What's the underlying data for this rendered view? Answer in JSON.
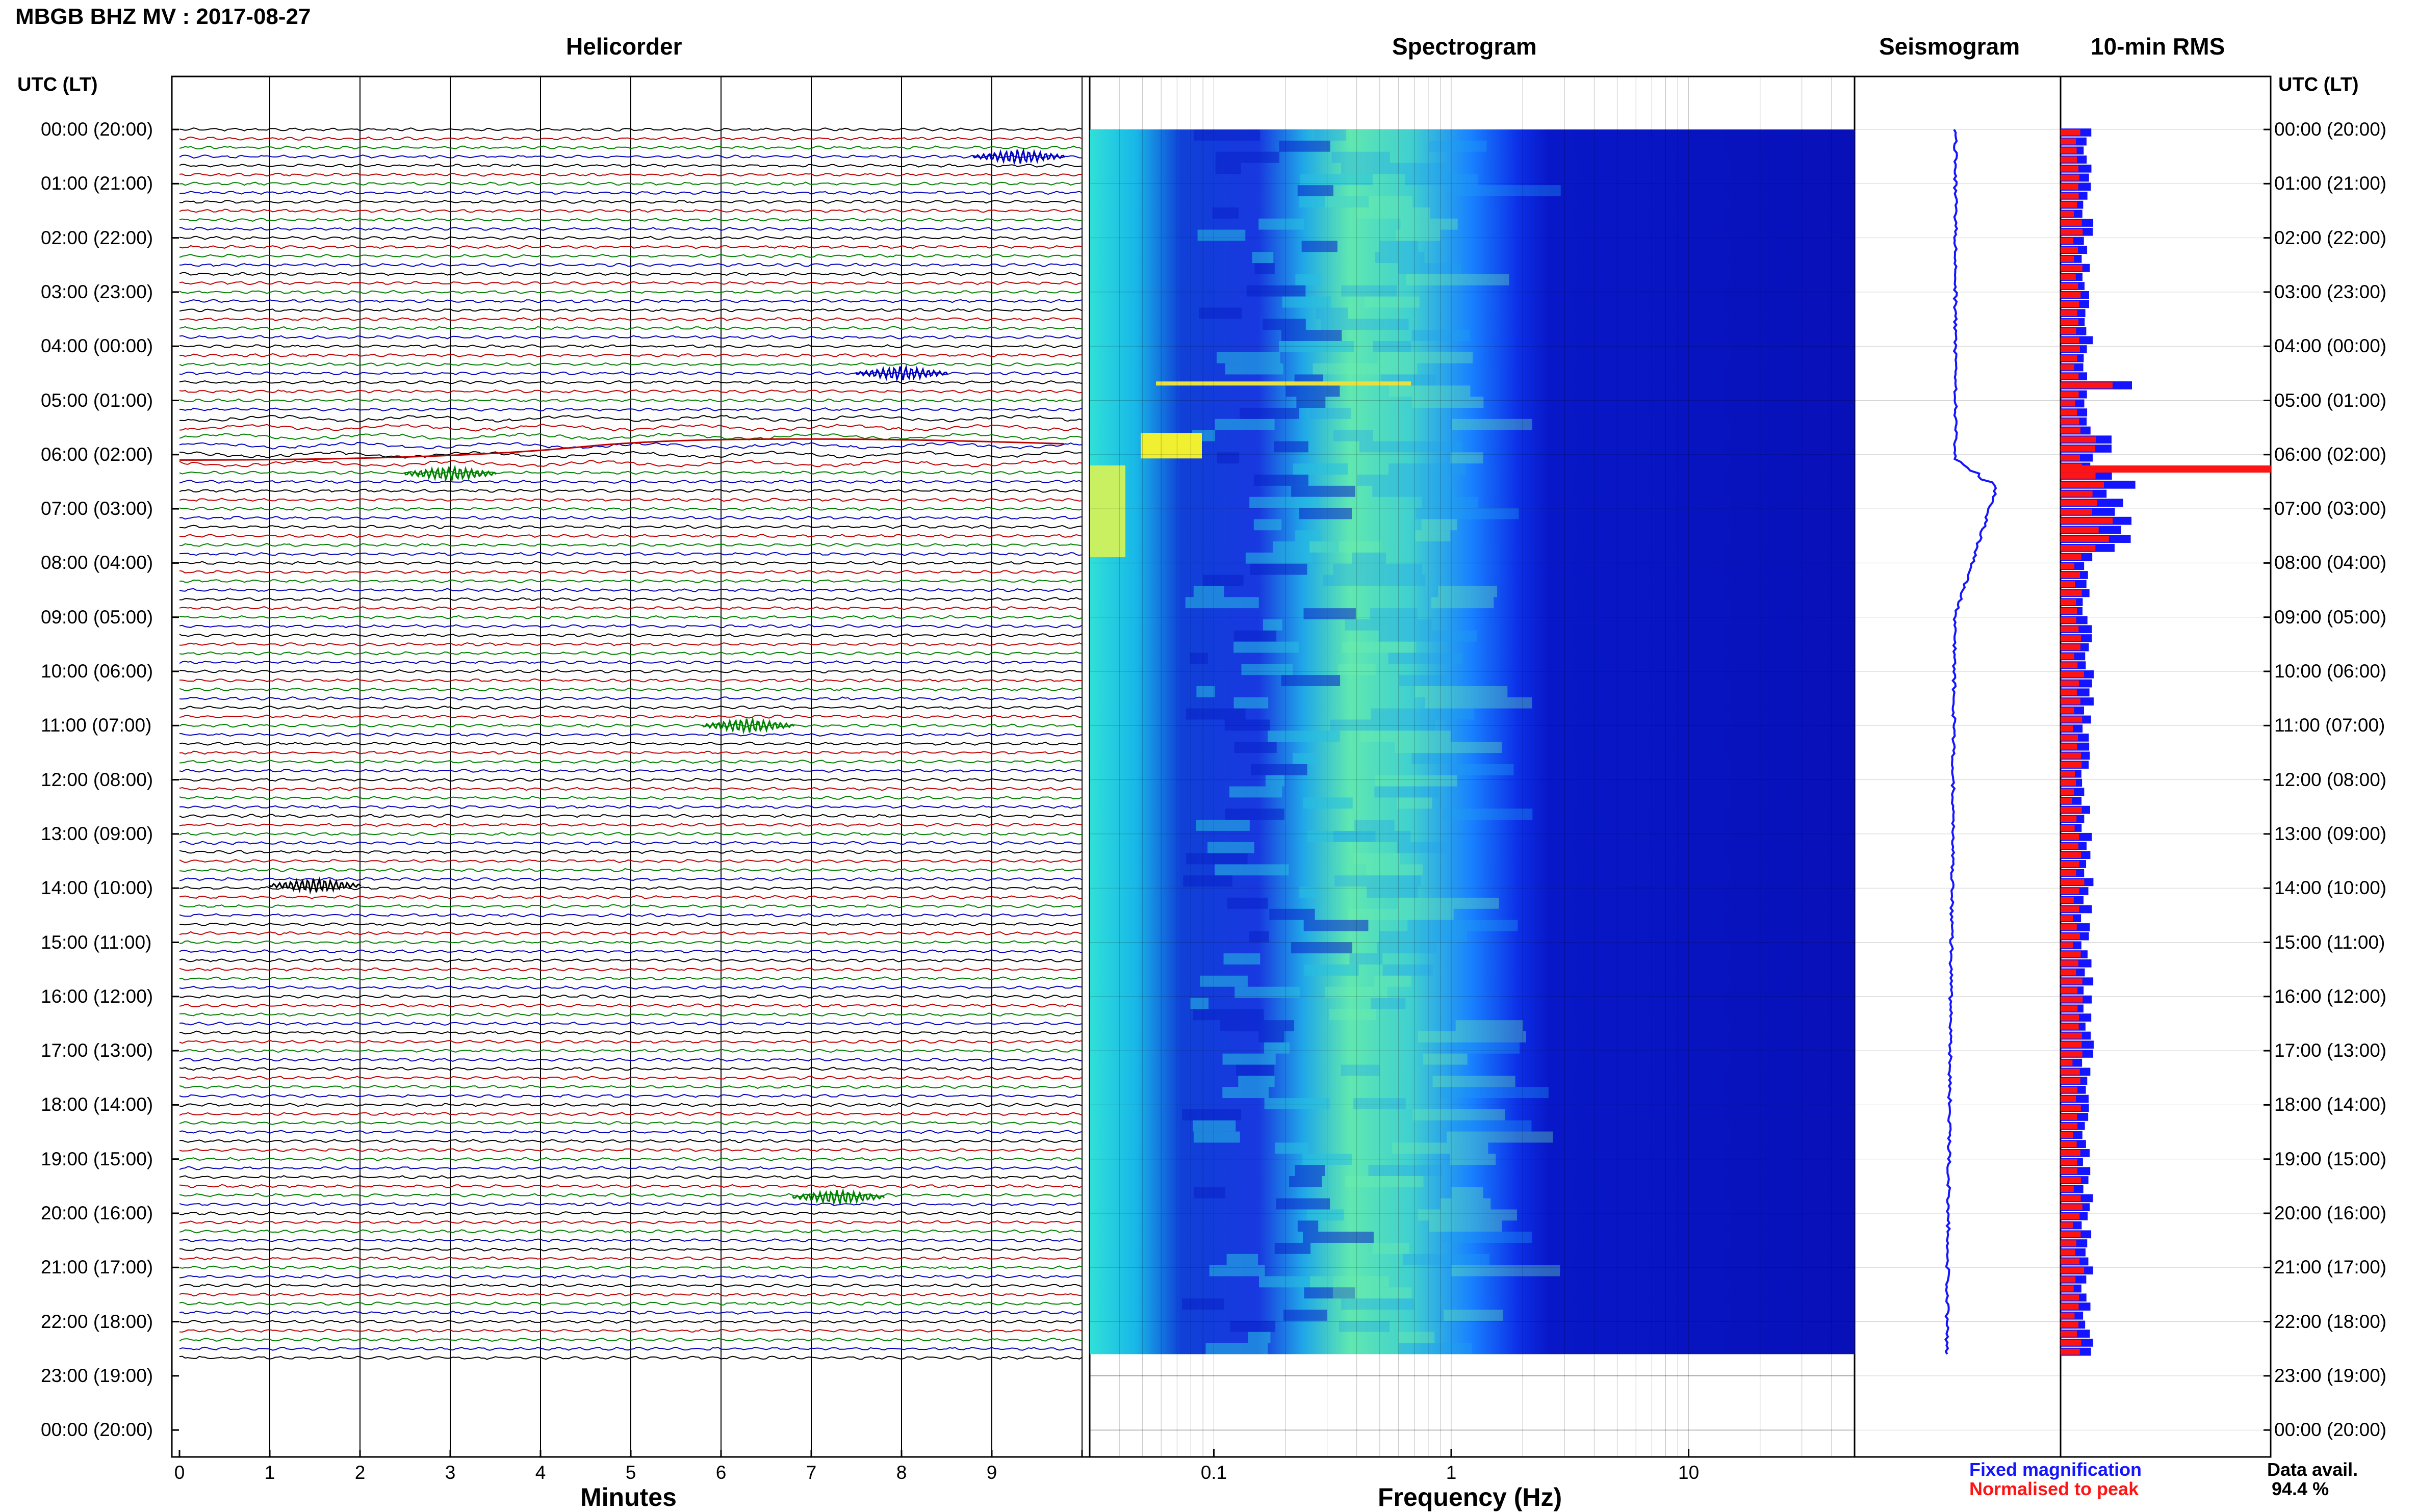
{
  "header": {
    "title": "MBGB BHZ MV : 2017-08-27"
  },
  "panels": {
    "helicorder": {
      "title": "Helicorder",
      "xlabel": "Minutes"
    },
    "spectrogram": {
      "title": "Spectrogram",
      "xlabel": "Frequency (Hz)"
    },
    "seismogram": {
      "title": "Seismogram"
    },
    "rms": {
      "title": "10-min RMS"
    }
  },
  "axis": {
    "left_label": "UTC (LT)",
    "right_label": "UTC (LT)"
  },
  "legend": {
    "fixed_magnification": "Fixed magnification",
    "normalised_to_peak": "Normalised to peak",
    "data_avail_label": "Data avail.",
    "data_avail_value": "94.4 %"
  },
  "colors": {
    "fixed": "#1414ff",
    "normalised": "#ff1414",
    "trace_cycle": [
      "#000000",
      "#c00000",
      "#008000",
      "#0000c0"
    ]
  },
  "chart_data": [
    {
      "type": "line",
      "panel": "helicorder",
      "title": "Helicorder",
      "xlabel": "Minutes",
      "x_ticks": [
        "0",
        "1",
        "2",
        "3",
        "4",
        "5",
        "6",
        "7",
        "8",
        "9"
      ],
      "xlim": [
        0,
        10
      ],
      "y_ticks": [
        "00:00 (20:00)",
        "01:00 (21:00)",
        "02:00 (22:00)",
        "03:00 (23:00)",
        "04:00 (00:00)",
        "05:00 (01:00)",
        "06:00 (02:00)",
        "07:00 (03:00)",
        "08:00 (04:00)",
        "09:00 (05:00)",
        "10:00 (06:00)",
        "11:00 (07:00)",
        "12:00 (08:00)",
        "13:00 (09:00)",
        "14:00 (10:00)",
        "15:00 (11:00)",
        "16:00 (12:00)",
        "17:00 (13:00)",
        "18:00 (14:00)",
        "19:00 (15:00)",
        "20:00 (16:00)",
        "21:00 (17:00)",
        "22:00 (18:00)",
        "23:00 (19:00)",
        "00:00 (20:00)"
      ],
      "ylim_hours": [
        0,
        24
      ],
      "data_end_hour": 22.6,
      "events": [
        {
          "hour": 0.5,
          "minute": 9.3
        },
        {
          "hour": 4.5,
          "minute": 8.0
        },
        {
          "hour": 6.35,
          "minute": 3.0
        },
        {
          "hour": 11.0,
          "minute": 6.3
        },
        {
          "hour": 13.95,
          "minute": 1.5
        },
        {
          "hour": 19.7,
          "minute": 7.3
        }
      ]
    },
    {
      "type": "heatmap",
      "panel": "spectrogram",
      "title": "Spectrogram",
      "xlabel": "Frequency (Hz)",
      "x_scale": "log",
      "xlim": [
        0.03,
        50
      ],
      "x_ticks": [
        "0.1",
        "1",
        "10"
      ],
      "data_end_hour": 22.6
    },
    {
      "type": "line",
      "panel": "seismogram",
      "title": "Seismogram",
      "data_end_hour": 22.6
    },
    {
      "type": "bar",
      "panel": "rms",
      "title": "10-min RMS",
      "series": [
        {
          "name": "Fixed magnification"
        },
        {
          "name": "Normalised to peak"
        }
      ],
      "peak_hour": 6.2
    }
  ]
}
